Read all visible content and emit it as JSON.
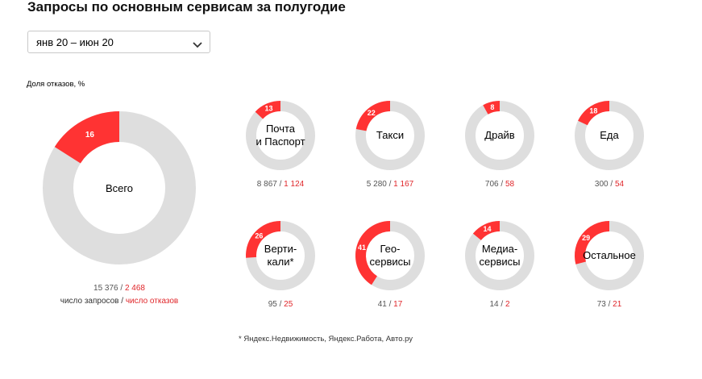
{
  "title": "Запросы по основным сервисам за полугодие",
  "period_select": {
    "value": "янв 20 – июн 20",
    "icon": "chevron-down-icon"
  },
  "colors": {
    "failures": "#ff3333",
    "requests": "#dedede",
    "failures_text": "#e0262a"
  },
  "chart_data": {
    "type": "donut",
    "value_caption": "Доля отказов, %",
    "legend": {
      "requests": "число запросов",
      "separator": " / ",
      "failures": "число отказов"
    },
    "footnote": "* Яндекс.Недвижимость, Яндекс.Работа, Авто.ру",
    "services": [
      {
        "label": "Всего",
        "label_lines": [
          "Всего"
        ],
        "share_pct": 16,
        "requests": "15 376",
        "failures": "2 468"
      },
      {
        "label": "Почта и Паспорт",
        "label_lines": [
          "Почта",
          "и Паспорт"
        ],
        "share_pct": 13,
        "requests": "8 867",
        "failures": "1 124"
      },
      {
        "label": "Такси",
        "label_lines": [
          "Такси"
        ],
        "share_pct": 22,
        "requests": "5 280",
        "failures": "1 167"
      },
      {
        "label": "Драйв",
        "label_lines": [
          "Драйв"
        ],
        "share_pct": 8,
        "requests": "706",
        "failures": "58"
      },
      {
        "label": "Еда",
        "label_lines": [
          "Еда"
        ],
        "share_pct": 18,
        "requests": "300",
        "failures": "54"
      },
      {
        "label": "Вертикали*",
        "label_lines": [
          "Верти-",
          "кали*"
        ],
        "share_pct": 26,
        "requests": "95",
        "failures": "25"
      },
      {
        "label": "Геосервисы",
        "label_lines": [
          "Гео-",
          "сервисы"
        ],
        "share_pct": 41,
        "requests": "41",
        "failures": "17"
      },
      {
        "label": "Медиасервисы",
        "label_lines": [
          "Медиа-",
          "сервисы"
        ],
        "share_pct": 14,
        "requests": "14",
        "failures": "2"
      },
      {
        "label": "Остальное",
        "label_lines": [
          "Остальное"
        ],
        "share_pct": 29,
        "requests": "73",
        "failures": "21"
      }
    ]
  }
}
